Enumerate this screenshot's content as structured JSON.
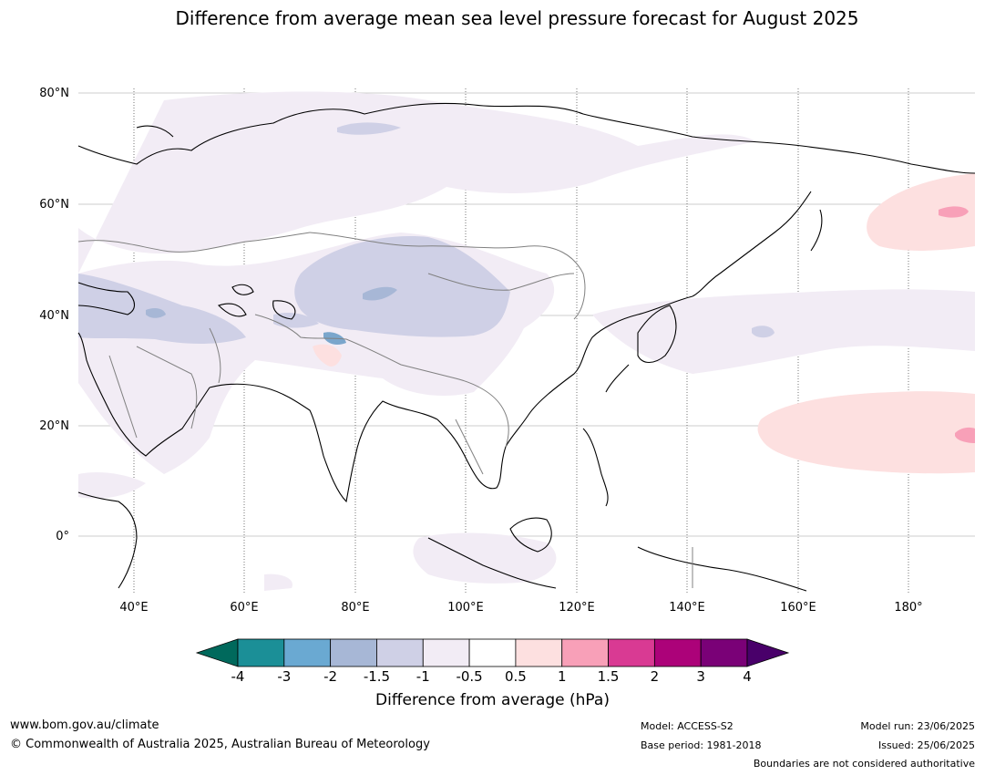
{
  "title": "Difference from average mean sea level pressure forecast for August 2025",
  "map": {
    "latitude_labels": [
      "80°N",
      "60°N",
      "40°N",
      "20°N",
      "0°"
    ],
    "longitude_labels": [
      "40°E",
      "60°E",
      "80°E",
      "100°E",
      "120°E",
      "140°E",
      "160°E",
      "180°"
    ]
  },
  "colorbar": {
    "ticks": [
      "-4",
      "-3",
      "-2",
      "-1.5",
      "-1",
      "-0.5",
      "0.5",
      "1",
      "1.5",
      "2",
      "3",
      "4"
    ],
    "colors": [
      "#1b8f97",
      "#6aa9d2",
      "#a7b7d6",
      "#cfd0e6",
      "#f2ecf5",
      "#ffffff",
      "#fde0e0",
      "#f8a0b8",
      "#d93a93",
      "#ac0279",
      "#7a0177"
    ],
    "under_color": "#00695c",
    "over_color": "#49006a",
    "label": "Difference from average (hPa)"
  },
  "footer": {
    "website": "www.bom.gov.au/climate",
    "copyright": "© Commonwealth of Australia 2025, Australian Bureau of Meteorology",
    "model": "Model: ACCESS-S2",
    "base_period": "Base period: 1981-2018",
    "model_run": "Model run: 23/06/2025",
    "issued": "Issued: 25/06/2025",
    "disclaimer": "Boundaries are not considered authoritative"
  }
}
